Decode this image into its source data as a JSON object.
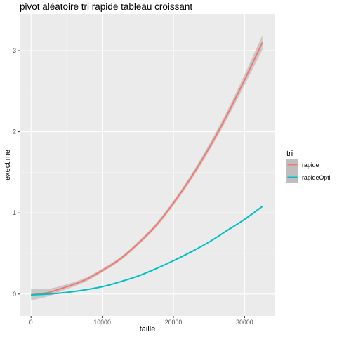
{
  "chart_data": {
    "type": "line",
    "title": "pivot aléatoire tri rapide tableau croissant",
    "xlabel": "taille",
    "ylabel": "exectime",
    "xlim": [
      -1600,
      34300
    ],
    "ylim": [
      -0.27,
      3.45
    ],
    "x_ticks": [
      0,
      10000,
      20000,
      30000
    ],
    "x_tick_labels": [
      "0",
      "10000",
      "20000",
      "30000"
    ],
    "y_ticks": [
      0,
      1,
      2,
      3
    ],
    "y_tick_labels": [
      "0",
      "1",
      "2",
      "3"
    ],
    "grid": true,
    "legend": {
      "title": "tri",
      "position": "right"
    },
    "series": [
      {
        "name": "rapide",
        "color": "#F8766D",
        "band_color": "#bebebe",
        "x": [
          0,
          2500,
          5000,
          7500,
          10000,
          12500,
          15000,
          17500,
          20000,
          22500,
          25000,
          27500,
          30000,
          32500
        ],
        "y": [
          -0.01,
          0.02,
          0.09,
          0.17,
          0.29,
          0.43,
          0.62,
          0.84,
          1.12,
          1.44,
          1.8,
          2.2,
          2.64,
          3.1
        ],
        "se": [
          0.07,
          0.045,
          0.03,
          0.025,
          0.022,
          0.022,
          0.024,
          0.027,
          0.03,
          0.035,
          0.042,
          0.05,
          0.065,
          0.09
        ]
      },
      {
        "name": "rapideOpti",
        "color": "#00BFC4",
        "band_color": "#bebebe",
        "x": [
          0,
          2500,
          5000,
          7500,
          10000,
          12500,
          15000,
          17500,
          20000,
          22500,
          25000,
          27500,
          30000,
          32500
        ],
        "y": [
          -0.01,
          0.0,
          0.02,
          0.05,
          0.09,
          0.15,
          0.22,
          0.31,
          0.41,
          0.52,
          0.64,
          0.78,
          0.92,
          1.08
        ],
        "se": [
          0.008,
          0.006,
          0.005,
          0.005,
          0.005,
          0.005,
          0.005,
          0.005,
          0.006,
          0.006,
          0.007,
          0.008,
          0.009,
          0.011
        ]
      }
    ]
  }
}
